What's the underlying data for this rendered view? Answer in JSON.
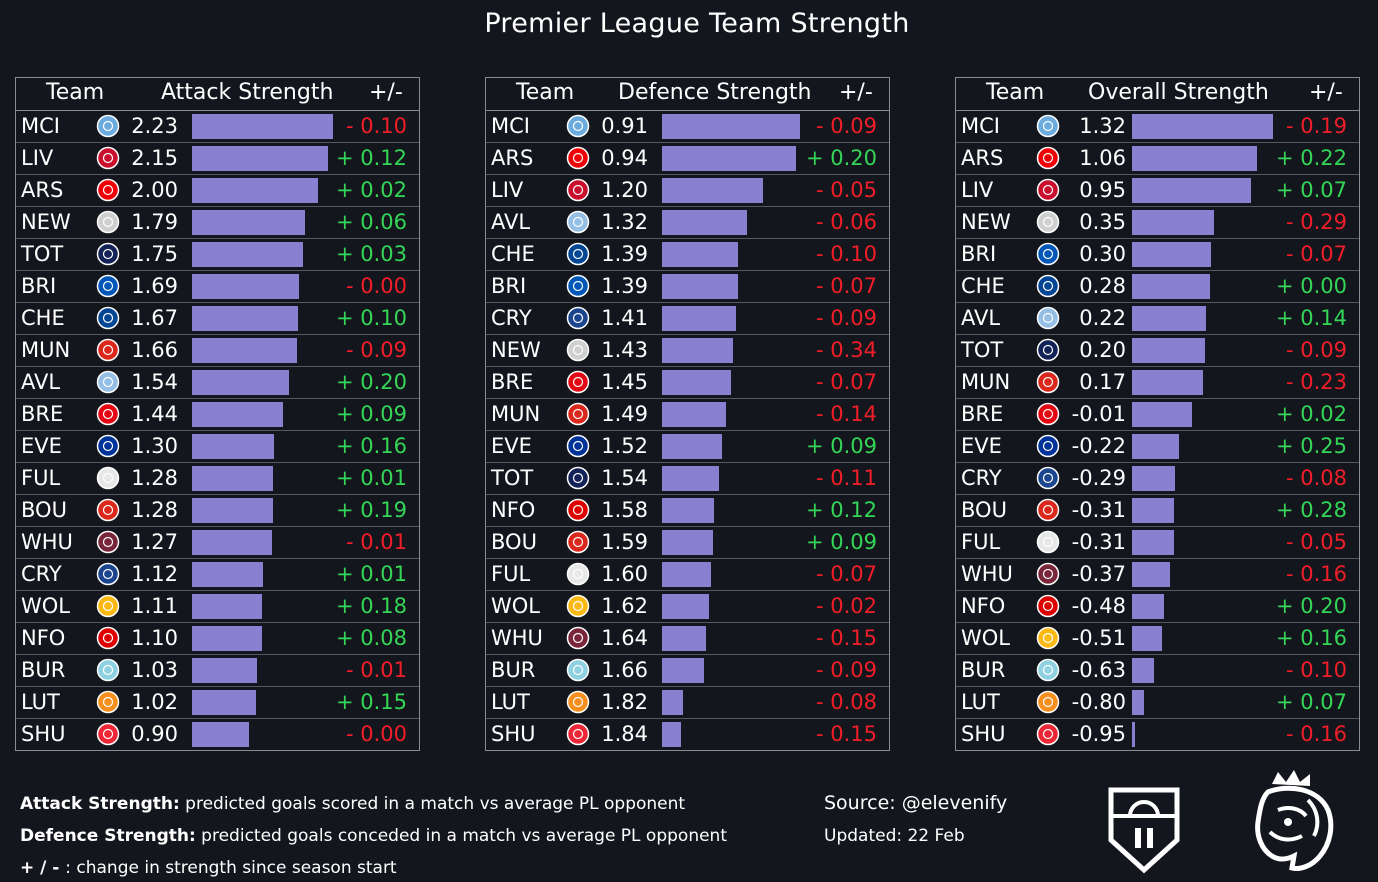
{
  "title": "Premier League Team Strength",
  "colors": {
    "bar": "#8a7fd0",
    "positive": "#34d656",
    "negative": "#f01e28",
    "background": "#14161d"
  },
  "chart_data": [
    {
      "type": "table",
      "headers": {
        "team": "Team",
        "metric": "Attack Strength",
        "change": "+/-"
      },
      "bar_max": 2.23,
      "rows": [
        {
          "team": "MCI",
          "value": "2.23",
          "num": 2.23,
          "change": "- 0.10",
          "dir": "neg",
          "logo": "manchester-city-crest-icon",
          "lc": "#6cabdd"
        },
        {
          "team": "LIV",
          "value": "2.15",
          "num": 2.15,
          "change": "+ 0.12",
          "dir": "pos",
          "logo": "liverpool-crest-icon",
          "lc": "#c8102e"
        },
        {
          "team": "ARS",
          "value": "2.00",
          "num": 2.0,
          "change": "+ 0.02",
          "dir": "pos",
          "logo": "arsenal-crest-icon",
          "lc": "#ef0107"
        },
        {
          "team": "NEW",
          "value": "1.79",
          "num": 1.79,
          "change": "+ 0.06",
          "dir": "pos",
          "logo": "newcastle-crest-icon",
          "lc": "#d0d0d0"
        },
        {
          "team": "TOT",
          "value": "1.75",
          "num": 1.75,
          "change": "+ 0.03",
          "dir": "pos",
          "logo": "tottenham-crest-icon",
          "lc": "#132257"
        },
        {
          "team": "BRI",
          "value": "1.69",
          "num": 1.69,
          "change": "- 0.00",
          "dir": "neg",
          "logo": "brighton-crest-icon",
          "lc": "#0057b8"
        },
        {
          "team": "CHE",
          "value": "1.67",
          "num": 1.67,
          "change": "+ 0.10",
          "dir": "pos",
          "logo": "chelsea-crest-icon",
          "lc": "#034694"
        },
        {
          "team": "MUN",
          "value": "1.66",
          "num": 1.66,
          "change": "- 0.09",
          "dir": "neg",
          "logo": "manchester-united-crest-icon",
          "lc": "#da291c"
        },
        {
          "team": "AVL",
          "value": "1.54",
          "num": 1.54,
          "change": "+ 0.20",
          "dir": "pos",
          "logo": "aston-villa-crest-icon",
          "lc": "#95bfe5"
        },
        {
          "team": "BRE",
          "value": "1.44",
          "num": 1.44,
          "change": "+ 0.09",
          "dir": "pos",
          "logo": "brentford-crest-icon",
          "lc": "#e30613"
        },
        {
          "team": "EVE",
          "value": "1.30",
          "num": 1.3,
          "change": "+ 0.16",
          "dir": "pos",
          "logo": "everton-crest-icon",
          "lc": "#003399"
        },
        {
          "team": "FUL",
          "value": "1.28",
          "num": 1.28,
          "change": "+ 0.01",
          "dir": "pos",
          "logo": "fulham-crest-icon",
          "lc": "#e8e8e8"
        },
        {
          "team": "BOU",
          "value": "1.28",
          "num": 1.28,
          "change": "+ 0.19",
          "dir": "pos",
          "logo": "bournemouth-crest-icon",
          "lc": "#da291c"
        },
        {
          "team": "WHU",
          "value": "1.27",
          "num": 1.27,
          "change": "- 0.01",
          "dir": "neg",
          "logo": "west-ham-crest-icon",
          "lc": "#7a263a"
        },
        {
          "team": "CRY",
          "value": "1.12",
          "num": 1.12,
          "change": "+ 0.01",
          "dir": "pos",
          "logo": "crystal-palace-crest-icon",
          "lc": "#1b458f"
        },
        {
          "team": "WOL",
          "value": "1.11",
          "num": 1.11,
          "change": "+ 0.18",
          "dir": "pos",
          "logo": "wolves-crest-icon",
          "lc": "#fdb913"
        },
        {
          "team": "NFO",
          "value": "1.10",
          "num": 1.1,
          "change": "+ 0.08",
          "dir": "pos",
          "logo": "nottingham-forest-crest-icon",
          "lc": "#dd0000"
        },
        {
          "team": "BUR",
          "value": "1.03",
          "num": 1.03,
          "change": "- 0.01",
          "dir": "neg",
          "logo": "burnley-crest-icon",
          "lc": "#8fd1e0"
        },
        {
          "team": "LUT",
          "value": "1.02",
          "num": 1.02,
          "change": "+ 0.15",
          "dir": "pos",
          "logo": "luton-crest-icon",
          "lc": "#f78f1e"
        },
        {
          "team": "SHU",
          "value": "0.90",
          "num": 0.9,
          "change": "- 0.00",
          "dir": "neg",
          "logo": "sheffield-united-crest-icon",
          "lc": "#ee2737"
        }
      ]
    },
    {
      "type": "table",
      "headers": {
        "team": "Team",
        "metric": "Defence Strength",
        "change": "+/-"
      },
      "bar_max": 1.92,
      "inverse": true,
      "rows": [
        {
          "team": "MCI",
          "value": "0.91",
          "num": 0.91,
          "change": "- 0.09",
          "dir": "neg",
          "logo": "manchester-city-crest-icon",
          "lc": "#6cabdd"
        },
        {
          "team": "ARS",
          "value": "0.94",
          "num": 0.94,
          "change": "+ 0.20",
          "dir": "pos",
          "logo": "arsenal-crest-icon",
          "lc": "#ef0107"
        },
        {
          "team": "LIV",
          "value": "1.20",
          "num": 1.2,
          "change": "- 0.05",
          "dir": "neg",
          "logo": "liverpool-crest-icon",
          "lc": "#c8102e"
        },
        {
          "team": "AVL",
          "value": "1.32",
          "num": 1.32,
          "change": "- 0.06",
          "dir": "neg",
          "logo": "aston-villa-crest-icon",
          "lc": "#95bfe5"
        },
        {
          "team": "CHE",
          "value": "1.39",
          "num": 1.39,
          "change": "- 0.10",
          "dir": "neg",
          "logo": "chelsea-crest-icon",
          "lc": "#034694"
        },
        {
          "team": "BRI",
          "value": "1.39",
          "num": 1.39,
          "change": "- 0.07",
          "dir": "neg",
          "logo": "brighton-crest-icon",
          "lc": "#0057b8"
        },
        {
          "team": "CRY",
          "value": "1.41",
          "num": 1.41,
          "change": "- 0.09",
          "dir": "neg",
          "logo": "crystal-palace-crest-icon",
          "lc": "#1b458f"
        },
        {
          "team": "NEW",
          "value": "1.43",
          "num": 1.43,
          "change": "- 0.34",
          "dir": "neg",
          "logo": "newcastle-crest-icon",
          "lc": "#d0d0d0"
        },
        {
          "team": "BRE",
          "value": "1.45",
          "num": 1.45,
          "change": "- 0.07",
          "dir": "neg",
          "logo": "brentford-crest-icon",
          "lc": "#e30613"
        },
        {
          "team": "MUN",
          "value": "1.49",
          "num": 1.49,
          "change": "- 0.14",
          "dir": "neg",
          "logo": "manchester-united-crest-icon",
          "lc": "#da291c"
        },
        {
          "team": "EVE",
          "value": "1.52",
          "num": 1.52,
          "change": "+ 0.09",
          "dir": "pos",
          "logo": "everton-crest-icon",
          "lc": "#003399"
        },
        {
          "team": "TOT",
          "value": "1.54",
          "num": 1.54,
          "change": "- 0.11",
          "dir": "neg",
          "logo": "tottenham-crest-icon",
          "lc": "#132257"
        },
        {
          "team": "NFO",
          "value": "1.58",
          "num": 1.58,
          "change": "+ 0.12",
          "dir": "pos",
          "logo": "nottingham-forest-crest-icon",
          "lc": "#dd0000"
        },
        {
          "team": "BOU",
          "value": "1.59",
          "num": 1.59,
          "change": "+ 0.09",
          "dir": "pos",
          "logo": "bournemouth-crest-icon",
          "lc": "#da291c"
        },
        {
          "team": "FUL",
          "value": "1.60",
          "num": 1.6,
          "change": "- 0.07",
          "dir": "neg",
          "logo": "fulham-crest-icon",
          "lc": "#e8e8e8"
        },
        {
          "team": "WOL",
          "value": "1.62",
          "num": 1.62,
          "change": "- 0.02",
          "dir": "neg",
          "logo": "wolves-crest-icon",
          "lc": "#fdb913"
        },
        {
          "team": "WHU",
          "value": "1.64",
          "num": 1.64,
          "change": "- 0.15",
          "dir": "neg",
          "logo": "west-ham-crest-icon",
          "lc": "#7a263a"
        },
        {
          "team": "BUR",
          "value": "1.66",
          "num": 1.66,
          "change": "- 0.09",
          "dir": "neg",
          "logo": "burnley-crest-icon",
          "lc": "#8fd1e0"
        },
        {
          "team": "LUT",
          "value": "1.82",
          "num": 1.82,
          "change": "- 0.08",
          "dir": "neg",
          "logo": "luton-crest-icon",
          "lc": "#f78f1e"
        },
        {
          "team": "SHU",
          "value": "1.84",
          "num": 1.84,
          "change": "- 0.15",
          "dir": "neg",
          "logo": "sheffield-united-crest-icon",
          "lc": "#ee2737"
        }
      ]
    },
    {
      "type": "table",
      "headers": {
        "team": "Team",
        "metric": "Overall Strength",
        "change": "+/-"
      },
      "bar_min": -1.0,
      "bar_max": 1.32,
      "rows": [
        {
          "team": "MCI",
          "value": "1.32",
          "num": 1.32,
          "change": "- 0.19",
          "dir": "neg",
          "logo": "manchester-city-crest-icon",
          "lc": "#6cabdd"
        },
        {
          "team": "ARS",
          "value": "1.06",
          "num": 1.06,
          "change": "+ 0.22",
          "dir": "pos",
          "logo": "arsenal-crest-icon",
          "lc": "#ef0107"
        },
        {
          "team": "LIV",
          "value": "0.95",
          "num": 0.95,
          "change": "+ 0.07",
          "dir": "pos",
          "logo": "liverpool-crest-icon",
          "lc": "#c8102e"
        },
        {
          "team": "NEW",
          "value": "0.35",
          "num": 0.35,
          "change": "- 0.29",
          "dir": "neg",
          "logo": "newcastle-crest-icon",
          "lc": "#d0d0d0"
        },
        {
          "team": "BRI",
          "value": "0.30",
          "num": 0.3,
          "change": "- 0.07",
          "dir": "neg",
          "logo": "brighton-crest-icon",
          "lc": "#0057b8"
        },
        {
          "team": "CHE",
          "value": "0.28",
          "num": 0.28,
          "change": "+ 0.00",
          "dir": "pos",
          "logo": "chelsea-crest-icon",
          "lc": "#034694"
        },
        {
          "team": "AVL",
          "value": "0.22",
          "num": 0.22,
          "change": "+ 0.14",
          "dir": "pos",
          "logo": "aston-villa-crest-icon",
          "lc": "#95bfe5"
        },
        {
          "team": "TOT",
          "value": "0.20",
          "num": 0.2,
          "change": "- 0.09",
          "dir": "neg",
          "logo": "tottenham-crest-icon",
          "lc": "#132257"
        },
        {
          "team": "MUN",
          "value": "0.17",
          "num": 0.17,
          "change": "- 0.23",
          "dir": "neg",
          "logo": "manchester-united-crest-icon",
          "lc": "#da291c"
        },
        {
          "team": "BRE",
          "value": "-0.01",
          "num": -0.01,
          "change": "+ 0.02",
          "dir": "pos",
          "logo": "brentford-crest-icon",
          "lc": "#e30613"
        },
        {
          "team": "EVE",
          "value": "-0.22",
          "num": -0.22,
          "change": "+ 0.25",
          "dir": "pos",
          "logo": "everton-crest-icon",
          "lc": "#003399"
        },
        {
          "team": "CRY",
          "value": "-0.29",
          "num": -0.29,
          "change": "- 0.08",
          "dir": "neg",
          "logo": "crystal-palace-crest-icon",
          "lc": "#1b458f"
        },
        {
          "team": "BOU",
          "value": "-0.31",
          "num": -0.31,
          "change": "+ 0.28",
          "dir": "pos",
          "logo": "bournemouth-crest-icon",
          "lc": "#da291c"
        },
        {
          "team": "FUL",
          "value": "-0.31",
          "num": -0.31,
          "change": "- 0.05",
          "dir": "neg",
          "logo": "fulham-crest-icon",
          "lc": "#e8e8e8"
        },
        {
          "team": "WHU",
          "value": "-0.37",
          "num": -0.37,
          "change": "- 0.16",
          "dir": "neg",
          "logo": "west-ham-crest-icon",
          "lc": "#7a263a"
        },
        {
          "team": "NFO",
          "value": "-0.48",
          "num": -0.48,
          "change": "+ 0.20",
          "dir": "pos",
          "logo": "nottingham-forest-crest-icon",
          "lc": "#dd0000"
        },
        {
          "team": "WOL",
          "value": "-0.51",
          "num": -0.51,
          "change": "+ 0.16",
          "dir": "pos",
          "logo": "wolves-crest-icon",
          "lc": "#fdb913"
        },
        {
          "team": "BUR",
          "value": "-0.63",
          "num": -0.63,
          "change": "- 0.10",
          "dir": "neg",
          "logo": "burnley-crest-icon",
          "lc": "#8fd1e0"
        },
        {
          "team": "LUT",
          "value": "-0.80",
          "num": -0.8,
          "change": "+ 0.07",
          "dir": "pos",
          "logo": "luton-crest-icon",
          "lc": "#f78f1e"
        },
        {
          "team": "SHU",
          "value": "-0.95",
          "num": -0.95,
          "change": "- 0.16",
          "dir": "neg",
          "logo": "sheffield-united-crest-icon",
          "lc": "#ee2737"
        }
      ]
    }
  ],
  "footer": {
    "attack_label": "Attack Strength:",
    "attack_text": " predicted goals scored in a match vs average PL opponent",
    "defence_label": "Defence Strength:",
    "defence_text": " predicted goals conceded in a match vs average PL opponent",
    "change_label": "+ / - ",
    "change_text": ": change in strength since season start",
    "source": "Source: @elevenify",
    "updated": "Updated: 22 Feb",
    "logo_left": "elevenify-shield-logo",
    "logo_right": "premier-league-lion-logo"
  }
}
